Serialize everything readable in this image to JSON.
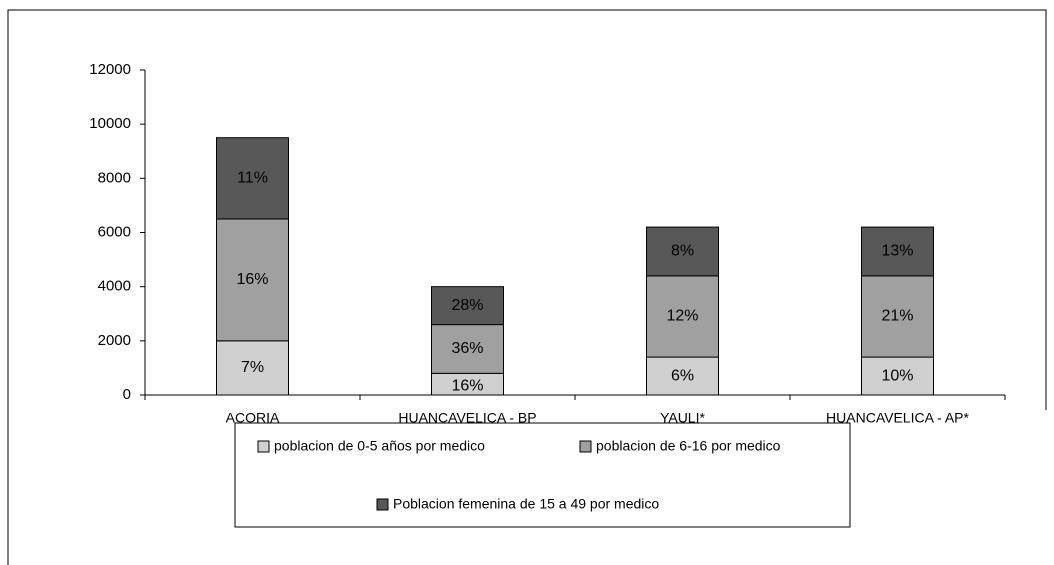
{
  "chart_data": {
    "type": "stacked_bar",
    "categories": [
      "ACORIA",
      "HUANCAVELICA - BP",
      "YAULI*",
      "HUANCAVELICA - AP*"
    ],
    "series": [
      {
        "name": "poblacion de 0-5 años por medico",
        "color": "#d0d0d0",
        "values": [
          2000,
          800,
          1400,
          1400
        ],
        "segment_labels": [
          "7%",
          "16%",
          "6%",
          "10%"
        ]
      },
      {
        "name": "poblacion de 6-16 por medico",
        "color": "#a0a0a0",
        "values": [
          4500,
          1800,
          3000,
          3000
        ],
        "segment_labels": [
          "16%",
          "36%",
          "12%",
          "21%"
        ]
      },
      {
        "name": "Poblacion femenina de 15 a 49 por medico",
        "color": "#585858",
        "values": [
          3000,
          1400,
          1800,
          1800
        ],
        "segment_labels": [
          "11%",
          "28%",
          "8%",
          "13%"
        ]
      }
    ],
    "ylim": [
      0,
      12000
    ],
    "yticks": [
      0,
      2000,
      4000,
      6000,
      8000,
      10000,
      12000
    ]
  }
}
